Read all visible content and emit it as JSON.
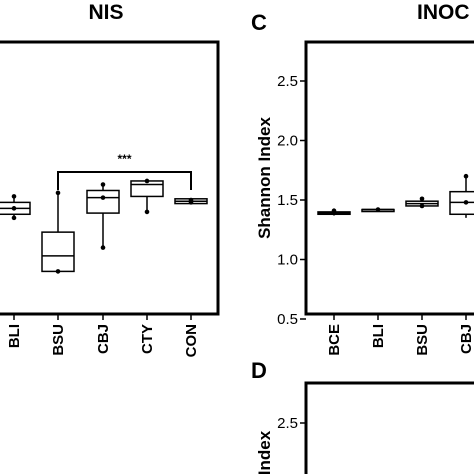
{
  "chart_data": [
    {
      "type": "box",
      "panel": "",
      "title": "NIS",
      "categories": [
        "BLI",
        "BSU",
        "CBJ",
        "CTY",
        "CON"
      ],
      "boxes": [
        {
          "min": 1.35,
          "q1": 1.38,
          "median": 1.43,
          "q3": 1.48,
          "max": 1.53,
          "points": [
            1.35,
            1.43,
            1.53
          ]
        },
        {
          "min": 0.9,
          "q1": 0.9,
          "median": 1.03,
          "q3": 1.23,
          "max": 1.56,
          "points": [
            0.9,
            1.56
          ]
        },
        {
          "min": 1.1,
          "q1": 1.39,
          "median": 1.52,
          "q3": 1.58,
          "max": 1.63,
          "points": [
            1.1,
            1.52,
            1.63
          ]
        },
        {
          "min": 1.4,
          "q1": 1.53,
          "median": 1.63,
          "q3": 1.66,
          "max": 1.66,
          "points": [
            1.4,
            1.66
          ]
        },
        {
          "min": 1.47,
          "q1": 1.47,
          "median": 1.49,
          "q3": 1.51,
          "max": 1.51,
          "points": [
            1.48,
            1.5
          ]
        }
      ],
      "significance": [
        {
          "from": "BSU",
          "to": "CON",
          "label": "***"
        }
      ]
    },
    {
      "type": "box",
      "panel": "C",
      "title": "INOC",
      "ylabel": "Shannon Index",
      "yticks": [
        "0.5",
        "1.0",
        "1.5",
        "2.0",
        "2.5"
      ],
      "ylim": [
        0.5,
        2.8
      ],
      "categories": [
        "BCE",
        "BLI",
        "BSU",
        "CBJ"
      ],
      "boxes": [
        {
          "min": 1.37,
          "q1": 1.38,
          "median": 1.39,
          "q3": 1.4,
          "max": 1.42,
          "points": [
            1.39,
            1.41
          ]
        },
        {
          "min": 1.42,
          "q1": 1.42,
          "median": 1.42,
          "q3": 1.42,
          "max": 1.42,
          "points": [
            1.42
          ]
        },
        {
          "min": 1.45,
          "q1": 1.45,
          "median": 1.47,
          "q3": 1.49,
          "max": 1.52,
          "points": [
            1.45,
            1.51
          ]
        },
        {
          "min": 1.35,
          "q1": 1.38,
          "median": 1.48,
          "q3": 1.57,
          "max": 1.7,
          "points": [
            1.48,
            1.7
          ]
        }
      ]
    },
    {
      "type": "box",
      "panel": "D",
      "ylabel": "Index",
      "yticks": [
        "2.5"
      ]
    }
  ]
}
